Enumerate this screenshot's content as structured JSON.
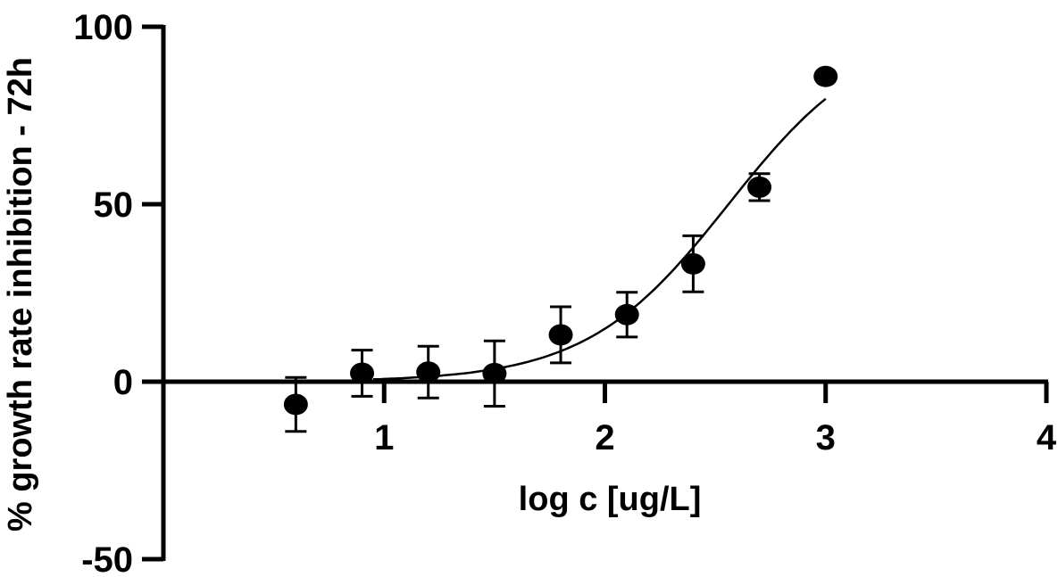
{
  "chart_data": {
    "type": "scatter",
    "title": "",
    "xlabel": "log c [ug/L]",
    "ylabel": "% growth rate inhibition - 72h",
    "xlim": [
      0,
      4
    ],
    "ylim": [
      -50,
      100
    ],
    "x_ticks": [
      1,
      2,
      3,
      4
    ],
    "y_ticks": [
      100,
      50,
      0,
      -50
    ],
    "x_tick_labels": [
      "1",
      "2",
      "3",
      "4"
    ],
    "y_tick_labels": [
      "100",
      "50",
      "0",
      "-50"
    ],
    "grid": false,
    "legend": "none",
    "series": [
      {
        "marker": "filled-circle",
        "color": "#000000",
        "x": [
          0.6,
          0.9,
          1.2,
          1.5,
          1.8,
          2.1,
          2.4,
          2.7,
          3.0
        ],
        "y": [
          -6.4,
          2.4,
          2.7,
          2.3,
          13.2,
          18.9,
          33.2,
          54.8,
          86.0
        ],
        "error": [
          7.6,
          6.5,
          7.3,
          9.2,
          7.9,
          6.3,
          7.9,
          3.8,
          null
        ]
      }
    ],
    "fit_curve": {
      "type": "four-parameter-logistic",
      "bottom": 0,
      "top": 100,
      "log_ec50": 2.56,
      "hill_slope": 1.35,
      "x_range": [
        0.95,
        3.0
      ],
      "color": "#000000"
    }
  }
}
